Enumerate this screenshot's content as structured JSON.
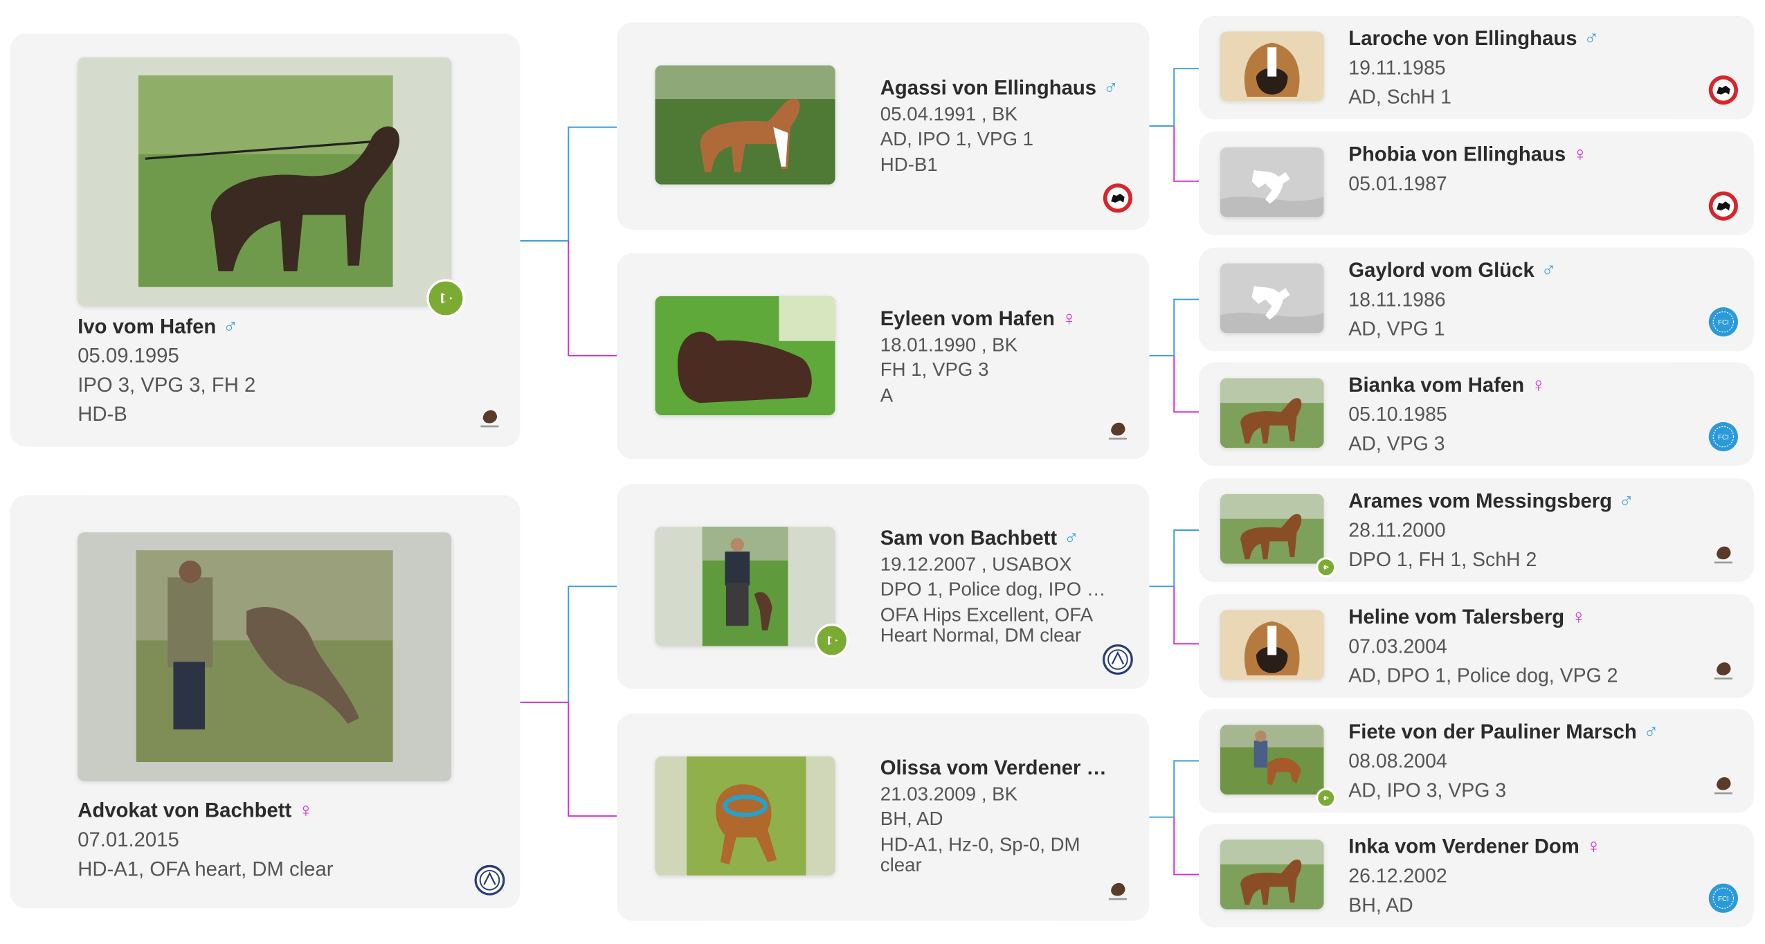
{
  "colors": {
    "male": "#3aa0d8",
    "female": "#d82fd0",
    "card_bg": "#f4f4f4",
    "play": "#7cab33",
    "badge_red": "#d7262b",
    "badge_akc": "#2a3c7a",
    "badge_fci": "#2b9ad8"
  },
  "symbols": {
    "male": "♂",
    "female": "♀"
  },
  "gen1": {
    "sire": {
      "name": "Ivo vom Hafen",
      "sex": "male",
      "date": "05.09.1995",
      "titles": "IPO 3, VPG 3, FH 2",
      "health": "HD-B",
      "badge": "boxerhub-logo",
      "has_video": true
    },
    "dam": {
      "name": "Advokat von Bachbett",
      "sex": "female",
      "date": "07.01.2015",
      "titles": "HD-A1, OFA heart, DM clear",
      "badge": "akc-logo",
      "has_video": false
    }
  },
  "gen2": {
    "ss": {
      "name": "Agassi von Ellinghaus",
      "sex": "male",
      "date": "05.04.1991 , BK",
      "titles": "AD, IPO 1, VPG 1",
      "health": "HD-B1",
      "badge": "bk-club-logo"
    },
    "sd": {
      "name": "Eyleen vom Hafen",
      "sex": "female",
      "date": "18.01.1990 , BK",
      "titles": "FH 1, VPG 3",
      "health": "A",
      "badge": "boxerhub-logo"
    },
    "ds": {
      "name": "Sam von Bachbett",
      "sex": "male",
      "date": "19.12.2007 , USABOX",
      "titles": "DPO 1, Police dog, IPO 3...",
      "health": "OFA Hips Excellent, OFA Heart Normal, DM clear",
      "badge": "akc-logo",
      "has_video": true
    },
    "dd": {
      "name": "Olissa vom Verdener D...",
      "sex": "female",
      "date": "21.03.2009 , BK",
      "titles": "BH, AD",
      "health": "HD-A1, Hz-0, Sp-0, DM clear",
      "badge": "boxerhub-logo"
    }
  },
  "gen3": [
    {
      "name": "Laroche von Ellinghaus",
      "sex": "male",
      "date": "19.11.1985",
      "titles": "AD, SchH 1",
      "badge": "bk-club-logo",
      "photo": "dog-head-icon"
    },
    {
      "name": "Phobia von Ellinghaus",
      "sex": "female",
      "date": "05.01.1987",
      "titles": "",
      "badge": "bk-club-logo",
      "photo": "placeholder-dog-icon"
    },
    {
      "name": "Gaylord vom Glück",
      "sex": "male",
      "date": "18.11.1986",
      "titles": "AD, VPG 1",
      "badge": "fci-logo",
      "photo": "placeholder-dog-icon"
    },
    {
      "name": "Bianka vom Hafen",
      "sex": "female",
      "date": "05.10.1985",
      "titles": "AD, VPG 3",
      "badge": "fci-logo",
      "photo": "dog-standing-icon"
    },
    {
      "name": "Arames vom Messingsberg",
      "sex": "male",
      "date": "28.11.2000",
      "titles": "DPO 1, FH 1, SchH 2",
      "badge": "boxerhub-logo",
      "photo": "dog-standing-icon",
      "has_video": true
    },
    {
      "name": "Heline vom Talersberg",
      "sex": "female",
      "date": "07.03.2004",
      "titles": "AD, DPO 1, Police dog, VPG 2",
      "badge": "boxerhub-logo",
      "photo": "dog-head-icon"
    },
    {
      "name": "Fiete von der Pauliner Marsch",
      "sex": "male",
      "date": "08.08.2004",
      "titles": "AD, IPO 3, VPG 3",
      "badge": "boxerhub-logo",
      "photo": "dog-training-icon",
      "has_video": true
    },
    {
      "name": "Inka vom Verdener Dom",
      "sex": "female",
      "date": "26.12.2002",
      "titles": "BH, AD",
      "badge": "fci-logo",
      "photo": "dog-standing-icon"
    }
  ]
}
